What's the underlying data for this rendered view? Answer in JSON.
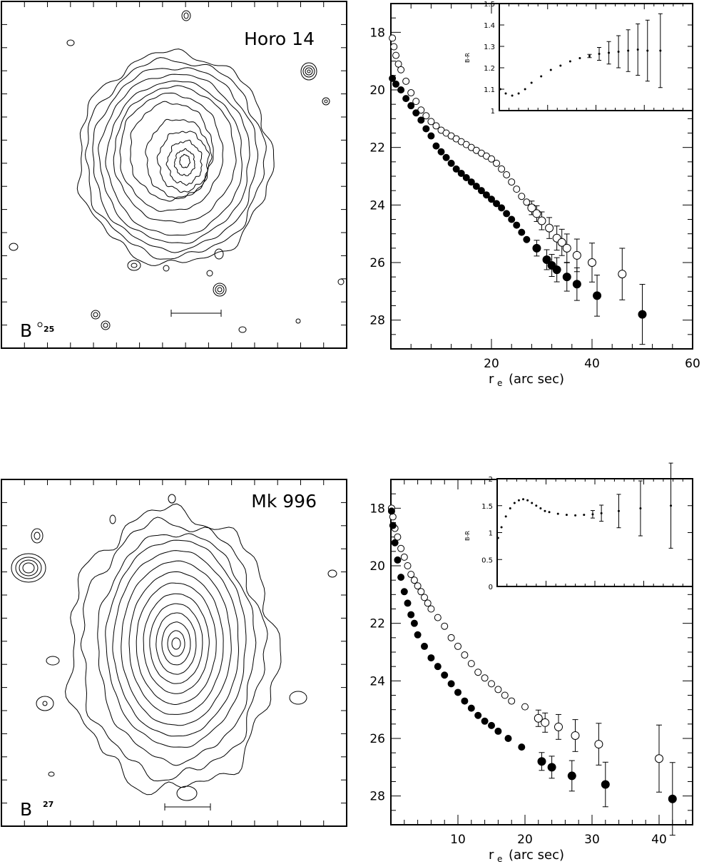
{
  "chart_data": [
    {
      "type": "contour",
      "title": "Horo 14",
      "band_label": "B",
      "band_sub": "25",
      "scale_bar": true
    },
    {
      "type": "scatter",
      "xlabel": "r",
      "xlabel_sub": "e",
      "xlabel_units": "(arc sec)",
      "xlim": [
        0,
        60
      ],
      "ylim": [
        29,
        17
      ],
      "xticks": [
        20,
        40,
        60
      ],
      "yticks": [
        18,
        20,
        22,
        24,
        26,
        28
      ],
      "series": [
        {
          "marker": "open",
          "values": [
            [
              0.3,
              18.2
            ],
            [
              0.6,
              18.5
            ],
            [
              1.0,
              18.8
            ],
            [
              1.5,
              19.1
            ],
            [
              2,
              19.3
            ],
            [
              3,
              19.7
            ],
            [
              4,
              20.1
            ],
            [
              5,
              20.4
            ],
            [
              6,
              20.7
            ],
            [
              7,
              20.9
            ],
            [
              8,
              21.1
            ],
            [
              9,
              21.25
            ],
            [
              10,
              21.4
            ],
            [
              11,
              21.5
            ],
            [
              12,
              21.6
            ],
            [
              13,
              21.7
            ],
            [
              14,
              21.8
            ],
            [
              15,
              21.9
            ],
            [
              16,
              22.0
            ],
            [
              17,
              22.1
            ],
            [
              18,
              22.2
            ],
            [
              19,
              22.3
            ],
            [
              20,
              22.4
            ],
            [
              21,
              22.55
            ],
            [
              22,
              22.75
            ],
            [
              23,
              22.95
            ],
            [
              24,
              23.2
            ],
            [
              25,
              23.45
            ],
            [
              26,
              23.7
            ],
            [
              27,
              23.9
            ],
            [
              28,
              24.1
            ],
            [
              29,
              24.3
            ],
            [
              30,
              24.55
            ],
            [
              31.5,
              24.8
            ],
            [
              33,
              25.15
            ],
            [
              34,
              25.3
            ],
            [
              35,
              25.5
            ],
            [
              37,
              25.75
            ],
            [
              40,
              26.0
            ],
            [
              46,
              26.4
            ]
          ]
        },
        {
          "marker": "filled",
          "values": [
            [
              0.3,
              19.6
            ],
            [
              1,
              19.8
            ],
            [
              2,
              20.0
            ],
            [
              3,
              20.3
            ],
            [
              4,
              20.55
            ],
            [
              5,
              20.8
            ],
            [
              6,
              21.05
            ],
            [
              7,
              21.35
            ],
            [
              8,
              21.6
            ],
            [
              9,
              21.95
            ],
            [
              10,
              22.15
            ],
            [
              11,
              22.35
            ],
            [
              12,
              22.55
            ],
            [
              13,
              22.75
            ],
            [
              14,
              22.9
            ],
            [
              15,
              23.05
            ],
            [
              16,
              23.2
            ],
            [
              17,
              23.35
            ],
            [
              18,
              23.5
            ],
            [
              19,
              23.65
            ],
            [
              20,
              23.8
            ],
            [
              21,
              23.95
            ],
            [
              22,
              24.1
            ],
            [
              23,
              24.3
            ],
            [
              24,
              24.5
            ],
            [
              25,
              24.7
            ],
            [
              26,
              24.95
            ],
            [
              27,
              25.2
            ],
            [
              29,
              25.5
            ],
            [
              31,
              25.9
            ],
            [
              32,
              26.1
            ],
            [
              33,
              26.25
            ],
            [
              35,
              26.5
            ],
            [
              37,
              26.75
            ],
            [
              41,
              27.15
            ],
            [
              50,
              27.8
            ]
          ]
        }
      ],
      "inset": {
        "xlim": [
          0,
          60
        ],
        "ylim": [
          1.0,
          1.5
        ],
        "yticks": [
          "1",
          "1.1",
          "1.2",
          "1.3",
          "1.4",
          "1.5"
        ],
        "ylabel": "B-R",
        "values": [
          [
            0.3,
            1.1
          ],
          [
            2,
            1.08
          ],
          [
            4,
            1.07
          ],
          [
            6,
            1.08
          ],
          [
            8,
            1.1
          ],
          [
            10,
            1.13
          ],
          [
            13,
            1.16
          ],
          [
            16,
            1.19
          ],
          [
            19,
            1.21
          ],
          [
            22,
            1.23
          ],
          [
            25,
            1.245
          ],
          [
            28,
            1.255
          ],
          [
            31,
            1.265
          ],
          [
            34,
            1.27
          ],
          [
            37,
            1.275
          ],
          [
            40,
            1.28
          ],
          [
            43,
            1.285
          ],
          [
            46,
            1.28
          ],
          [
            50,
            1.28
          ]
        ]
      }
    },
    {
      "type": "contour",
      "title": "Mk 996",
      "band_label": "B",
      "band_sub": "27",
      "scale_bar": true
    },
    {
      "type": "scatter",
      "xlabel": "r",
      "xlabel_sub": "e",
      "xlabel_units": "(arc sec)",
      "xlim": [
        0,
        45
      ],
      "ylim": [
        29,
        17
      ],
      "xticks": [
        10,
        20,
        30,
        40
      ],
      "yticks": [
        18,
        20,
        22,
        24,
        26,
        28
      ],
      "series": [
        {
          "marker": "open",
          "values": [
            [
              0.1,
              18.0
            ],
            [
              0.3,
              18.3
            ],
            [
              0.6,
              18.7
            ],
            [
              1,
              19.0
            ],
            [
              1.5,
              19.4
            ],
            [
              2,
              19.7
            ],
            [
              2.5,
              20.0
            ],
            [
              3,
              20.3
            ],
            [
              3.5,
              20.5
            ],
            [
              4,
              20.7
            ],
            [
              4.5,
              20.9
            ],
            [
              5,
              21.1
            ],
            [
              5.5,
              21.3
            ],
            [
              6,
              21.5
            ],
            [
              7,
              21.8
            ],
            [
              8,
              22.1
            ],
            [
              9,
              22.5
            ],
            [
              10,
              22.8
            ],
            [
              11,
              23.1
            ],
            [
              12,
              23.4
            ],
            [
              13,
              23.7
            ],
            [
              14,
              23.9
            ],
            [
              15,
              24.1
            ],
            [
              16,
              24.3
            ],
            [
              17,
              24.5
            ],
            [
              18,
              24.7
            ],
            [
              20,
              24.9
            ],
            [
              22,
              25.3
            ],
            [
              23,
              25.45
            ],
            [
              25,
              25.6
            ],
            [
              27.5,
              25.9
            ],
            [
              31,
              26.2
            ],
            [
              40,
              26.7
            ]
          ]
        },
        {
          "marker": "filled",
          "values": [
            [
              0.1,
              18.1
            ],
            [
              0.3,
              18.6
            ],
            [
              0.6,
              19.2
            ],
            [
              1,
              19.8
            ],
            [
              1.5,
              20.4
            ],
            [
              2,
              20.9
            ],
            [
              2.5,
              21.3
            ],
            [
              3,
              21.7
            ],
            [
              3.5,
              22.0
            ],
            [
              4,
              22.4
            ],
            [
              5,
              22.8
            ],
            [
              6,
              23.2
            ],
            [
              7,
              23.5
            ],
            [
              8,
              23.8
            ],
            [
              9,
              24.1
            ],
            [
              10,
              24.4
            ],
            [
              11,
              24.7
            ],
            [
              12,
              24.95
            ],
            [
              13,
              25.2
            ],
            [
              14,
              25.4
            ],
            [
              15,
              25.55
            ],
            [
              16,
              25.75
            ],
            [
              17.5,
              26.0
            ],
            [
              19.5,
              26.3
            ],
            [
              22.5,
              26.8
            ],
            [
              24,
              27.0
            ],
            [
              27,
              27.3
            ],
            [
              32,
              27.6
            ],
            [
              42,
              28.1
            ]
          ]
        }
      ],
      "inset": {
        "xlim": [
          0,
          45
        ],
        "ylim": [
          0,
          2
        ],
        "yticks": [
          "0",
          "0.5",
          "1",
          "1.5",
          "2"
        ],
        "ylabel": "B-R",
        "values": [
          [
            0.2,
            0.9
          ],
          [
            1,
            1.1
          ],
          [
            2,
            1.3
          ],
          [
            3,
            1.45
          ],
          [
            4,
            1.55
          ],
          [
            5,
            1.6
          ],
          [
            6,
            1.62
          ],
          [
            7,
            1.6
          ],
          [
            8,
            1.55
          ],
          [
            9,
            1.5
          ],
          [
            10,
            1.45
          ],
          [
            11,
            1.4
          ],
          [
            12,
            1.38
          ],
          [
            14,
            1.35
          ],
          [
            16,
            1.33
          ],
          [
            18,
            1.32
          ],
          [
            20,
            1.33
          ],
          [
            22,
            1.34
          ],
          [
            24,
            1.36
          ],
          [
            28,
            1.4
          ],
          [
            33,
            1.45
          ],
          [
            40,
            1.5
          ]
        ]
      }
    }
  ]
}
